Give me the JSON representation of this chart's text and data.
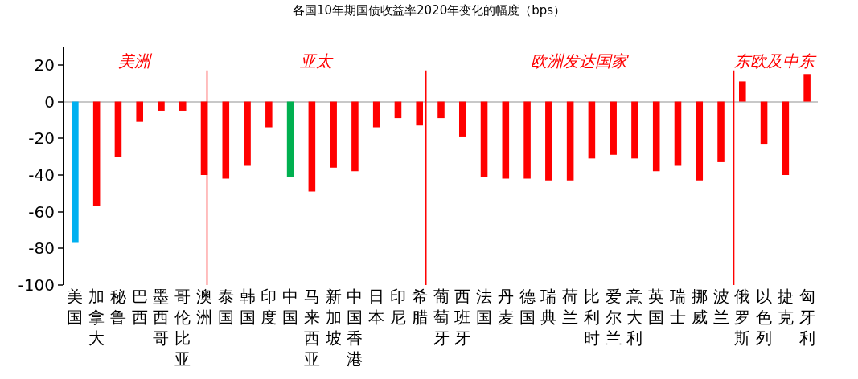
{
  "chart_data": {
    "type": "bar",
    "title": "各国10年期国债收益率2020年变化的幅度（bps）",
    "categories": [
      "美国",
      "加拿大",
      "秘鲁",
      "巴西",
      "墨西哥",
      "哥伦比亚",
      "澳洲",
      "泰国",
      "韩国",
      "印度",
      "中国",
      "马来西亚",
      "新加坡",
      "中国香港",
      "日本",
      "印尼",
      "希腊",
      "葡萄牙",
      "西班牙",
      "法国",
      "丹麦",
      "德国",
      "瑞典",
      "荷兰",
      "比利时",
      "爱尔兰",
      "意大利",
      "英国",
      "瑞士",
      "挪威",
      "波兰",
      "俄罗斯",
      "以色列",
      "捷克",
      "匈牙利"
    ],
    "values": [
      -77,
      -57,
      -30,
      -11,
      -5,
      -5,
      -40,
      -42,
      -35,
      -14,
      -41,
      -49,
      -36,
      -38,
      -14,
      -9,
      -13,
      -9,
      -19,
      -41,
      -42,
      -42,
      -43,
      -43,
      -31,
      -29,
      -31,
      -38,
      -35,
      -43,
      -33,
      11,
      -23,
      -40,
      15
    ],
    "colors": [
      "#00b0f0",
      "#ff0000",
      "#ff0000",
      "#ff0000",
      "#ff0000",
      "#ff0000",
      "#ff0000",
      "#ff0000",
      "#ff0000",
      "#ff0000",
      "#00b050",
      "#ff0000",
      "#ff0000",
      "#ff0000",
      "#ff0000",
      "#ff0000",
      "#ff0000",
      "#ff0000",
      "#ff0000",
      "#ff0000",
      "#ff0000",
      "#ff0000",
      "#ff0000",
      "#ff0000",
      "#ff0000",
      "#ff0000",
      "#ff0000",
      "#ff0000",
      "#ff0000",
      "#ff0000",
      "#ff0000",
      "#ff0000",
      "#ff0000",
      "#ff0000",
      "#ff0000"
    ],
    "ylim": [
      -100,
      30
    ],
    "yticks": [
      -100,
      -80,
      -60,
      -40,
      -20,
      0,
      20
    ],
    "annotations": [
      "美洲",
      "亚太",
      "欧洲发达国家",
      "东欧及中东"
    ]
  }
}
